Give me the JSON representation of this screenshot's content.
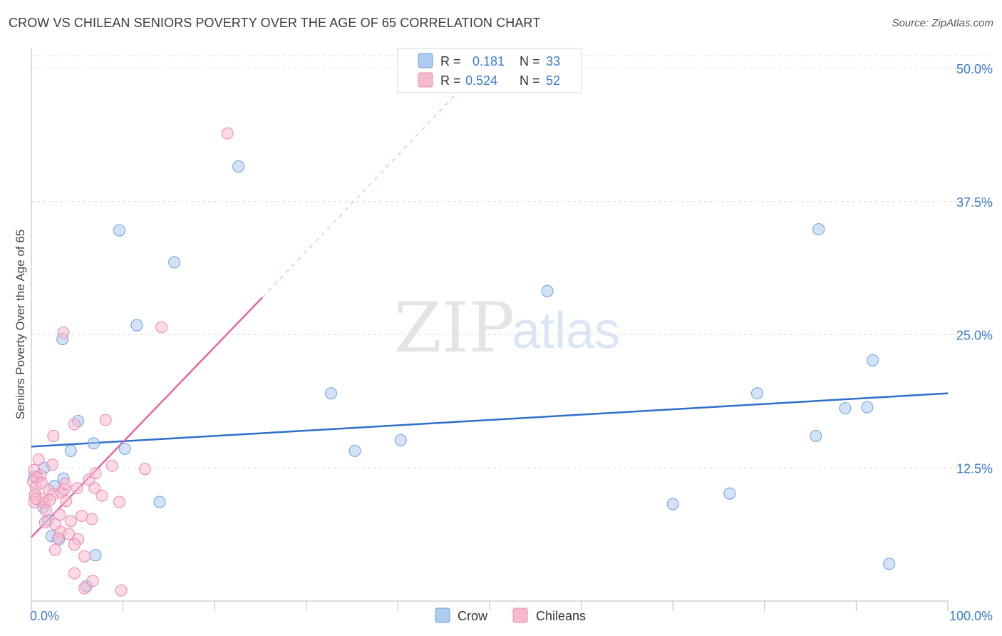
{
  "title": "CROW VS CHILEAN SENIORS POVERTY OVER THE AGE OF 65 CORRELATION CHART",
  "source": "Source: ZipAtlas.com",
  "watermark": {
    "zip": "ZIP",
    "atlas": "atlas"
  },
  "legend_top": [
    {
      "r_label": "R =",
      "r_value": "0.181",
      "n_label": "N =",
      "n_value": "33",
      "color": "#aecbf0",
      "stroke": "#6a9fe0"
    },
    {
      "r_label": "R =",
      "r_value": "0.524",
      "n_label": "N =",
      "n_value": "52",
      "color": "#f7b9cf",
      "stroke": "#e88aab"
    }
  ],
  "legend_bottom": [
    {
      "label": "Crow",
      "color": "#aecbf0",
      "stroke": "#6a9fe0"
    },
    {
      "label": "Chileans",
      "color": "#f7b9cf",
      "stroke": "#e88aab"
    }
  ],
  "colors": {
    "blue_line": "#2f6fc9",
    "pink_line": "#e8669a",
    "axis_text": "#3b7bd0",
    "grid": "#dcdcdc"
  },
  "chart_data": {
    "type": "scatter",
    "xlabel": "",
    "ylabel": "Seniors Poverty Over the Age of 65",
    "xlim": [
      0,
      100
    ],
    "ylim": [
      0,
      50
    ],
    "x_tick_labels": [
      {
        "value": 0,
        "label": "0.0%"
      },
      {
        "value": 100,
        "label": "100.0%"
      }
    ],
    "y_tick_labels": [
      {
        "value": 12.5,
        "label": "12.5%"
      },
      {
        "value": 25,
        "label": "25.0%"
      },
      {
        "value": 37.5,
        "label": "37.5%"
      },
      {
        "value": 50,
        "label": "50.0%"
      }
    ],
    "grid": true,
    "series": [
      {
        "name": "Crow",
        "points": [
          [
            22.6,
            40.8
          ],
          [
            9.6,
            34.8
          ],
          [
            15.6,
            31.8
          ],
          [
            3.4,
            24.6
          ],
          [
            11.5,
            25.9
          ],
          [
            5.1,
            16.9
          ],
          [
            6.8,
            14.8
          ],
          [
            10.2,
            14.3
          ],
          [
            4.3,
            14.1
          ],
          [
            3.5,
            11.5
          ],
          [
            1.4,
            12.5
          ],
          [
            2.5,
            10.8
          ],
          [
            0.3,
            11.7
          ],
          [
            14.0,
            9.3
          ],
          [
            1.3,
            8.8
          ],
          [
            1.8,
            7.6
          ],
          [
            2.2,
            6.1
          ],
          [
            3.0,
            5.8
          ],
          [
            7.0,
            4.3
          ],
          [
            6.0,
            1.4
          ],
          [
            56.3,
            29.1
          ],
          [
            32.7,
            19.5
          ],
          [
            35.3,
            14.1
          ],
          [
            40.3,
            15.1
          ],
          [
            70.0,
            9.1
          ],
          [
            79.2,
            19.5
          ],
          [
            76.2,
            10.1
          ],
          [
            85.9,
            34.9
          ],
          [
            88.8,
            18.1
          ],
          [
            91.2,
            18.2
          ],
          [
            85.6,
            15.5
          ],
          [
            91.8,
            22.6
          ],
          [
            93.6,
            3.5
          ]
        ]
      },
      {
        "name": "Chileans",
        "points": [
          [
            21.4,
            43.9
          ],
          [
            14.2,
            25.7
          ],
          [
            3.5,
            25.2
          ],
          [
            8.1,
            17.0
          ],
          [
            4.7,
            16.6
          ],
          [
            2.4,
            15.5
          ],
          [
            0.8,
            13.3
          ],
          [
            2.3,
            12.8
          ],
          [
            0.3,
            12.3
          ],
          [
            1.0,
            11.8
          ],
          [
            0.6,
            11.6
          ],
          [
            0.2,
            11.2
          ],
          [
            0.5,
            10.7
          ],
          [
            1.9,
            10.4
          ],
          [
            0.4,
            10.0
          ],
          [
            1.2,
            9.6
          ],
          [
            0.3,
            9.3
          ],
          [
            2.4,
            10.0
          ],
          [
            3.3,
            10.2
          ],
          [
            3.6,
            10.5
          ],
          [
            5.0,
            10.6
          ],
          [
            6.3,
            11.4
          ],
          [
            7.0,
            12.0
          ],
          [
            8.8,
            12.7
          ],
          [
            12.4,
            12.4
          ],
          [
            1.4,
            9.2
          ],
          [
            2.0,
            9.5
          ],
          [
            3.8,
            9.4
          ],
          [
            1.6,
            8.5
          ],
          [
            3.1,
            8.1
          ],
          [
            4.3,
            7.5
          ],
          [
            2.6,
            7.2
          ],
          [
            6.6,
            7.7
          ],
          [
            5.5,
            8.0
          ],
          [
            1.5,
            7.4
          ],
          [
            3.2,
            6.5
          ],
          [
            4.1,
            6.3
          ],
          [
            2.9,
            5.9
          ],
          [
            5.1,
            5.8
          ],
          [
            4.7,
            5.3
          ],
          [
            2.6,
            4.8
          ],
          [
            5.8,
            4.2
          ],
          [
            9.6,
            9.3
          ],
          [
            7.7,
            9.9
          ],
          [
            1.1,
            11.1
          ],
          [
            0.5,
            9.6
          ],
          [
            3.7,
            11.0
          ],
          [
            6.9,
            10.6
          ],
          [
            4.7,
            2.6
          ],
          [
            6.7,
            1.9
          ],
          [
            5.8,
            1.2
          ],
          [
            9.8,
            1.0
          ]
        ]
      }
    ],
    "trendlines": [
      {
        "series": "Crow",
        "x": [
          0,
          100
        ],
        "y": [
          14.5,
          19.5
        ],
        "style": "solid"
      },
      {
        "series": "Chileans",
        "x": [
          0,
          25.2
        ],
        "y": [
          6.0,
          28.5
        ],
        "style": "solid"
      },
      {
        "series": "Chileans",
        "x": [
          25.2,
          49
        ],
        "y": [
          28.5,
          50
        ],
        "style": "dashed"
      }
    ]
  }
}
